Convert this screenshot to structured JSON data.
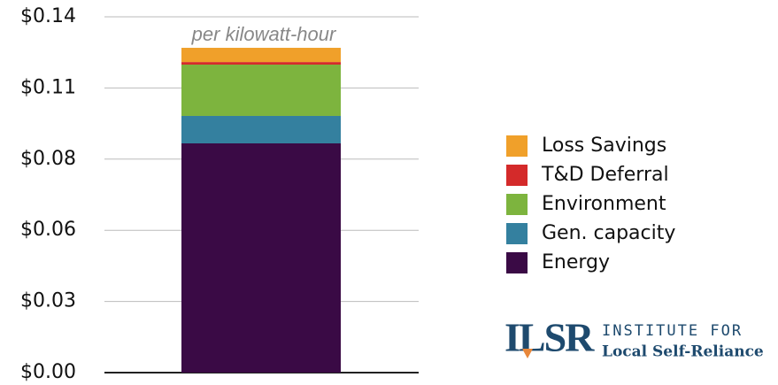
{
  "chart_data": {
    "type": "stacked_bar",
    "annotation": "per kilowatt-hour",
    "categories": [
      null
    ],
    "series": [
      {
        "name": "Energy",
        "color": "#3a0a45",
        "values": [
          0.0902
        ]
      },
      {
        "name": "Gen. capacity",
        "color": "#34809f",
        "values": [
          0.0108
        ]
      },
      {
        "name": "Environment",
        "color": "#7db43e",
        "values": [
          0.0202
        ]
      },
      {
        "name": "T&D Deferral",
        "color": "#d42a2a",
        "values": [
          0.001
        ]
      },
      {
        "name": "Loss Savings",
        "color": "#f0a02a",
        "values": [
          0.0056
        ]
      }
    ],
    "ylim": [
      0,
      0.14
    ],
    "yticks": [
      {
        "value": 0,
        "label": "$0.00"
      },
      {
        "value": 0.028,
        "label": "$0.03"
      },
      {
        "value": 0.056,
        "label": "$0.06"
      },
      {
        "value": 0.084,
        "label": "$0.08"
      },
      {
        "value": 0.112,
        "label": "$0.11"
      },
      {
        "value": 0.14,
        "label": "$0.14"
      }
    ],
    "grid": true,
    "legend": "right",
    "logo": {
      "mark": "ILSR",
      "line1": "INSTITUTE FOR",
      "line2": "Local Self-Reliance"
    }
  }
}
